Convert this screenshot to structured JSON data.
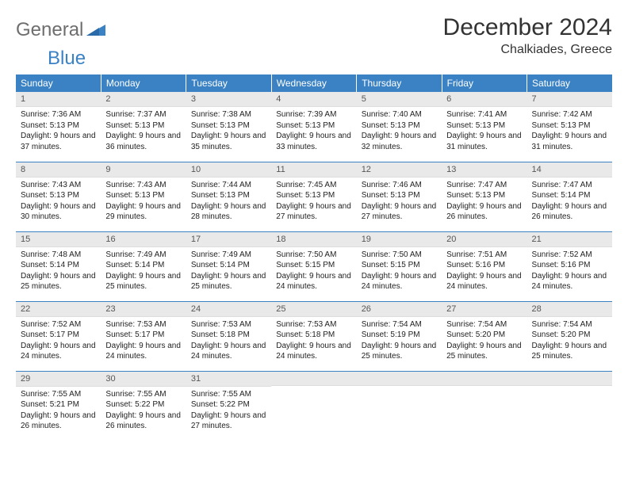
{
  "logo": {
    "part1": "General",
    "part2": "Blue"
  },
  "header": {
    "month_title": "December 2024",
    "location": "Chalkiades, Greece"
  },
  "colors": {
    "header_bg": "#3b82c4",
    "header_text": "#ffffff",
    "daynum_bg": "#e9e9e9",
    "row_divider": "#3b82c4",
    "logo_gray": "#6e6e6e",
    "logo_blue": "#3b82c4",
    "body_text": "#222222",
    "background": "#ffffff"
  },
  "typography": {
    "month_title_fontsize": 30,
    "location_fontsize": 16,
    "weekday_fontsize": 12,
    "daynum_fontsize": 11,
    "body_fontsize": 10,
    "font_family": "Arial"
  },
  "calendar": {
    "type": "table",
    "columns": [
      "Sunday",
      "Monday",
      "Tuesday",
      "Wednesday",
      "Thursday",
      "Friday",
      "Saturday"
    ],
    "weeks": [
      [
        {
          "day": "1",
          "sunrise": "Sunrise: 7:36 AM",
          "sunset": "Sunset: 5:13 PM",
          "daylight": "Daylight: 9 hours and 37 minutes."
        },
        {
          "day": "2",
          "sunrise": "Sunrise: 7:37 AM",
          "sunset": "Sunset: 5:13 PM",
          "daylight": "Daylight: 9 hours and 36 minutes."
        },
        {
          "day": "3",
          "sunrise": "Sunrise: 7:38 AM",
          "sunset": "Sunset: 5:13 PM",
          "daylight": "Daylight: 9 hours and 35 minutes."
        },
        {
          "day": "4",
          "sunrise": "Sunrise: 7:39 AM",
          "sunset": "Sunset: 5:13 PM",
          "daylight": "Daylight: 9 hours and 33 minutes."
        },
        {
          "day": "5",
          "sunrise": "Sunrise: 7:40 AM",
          "sunset": "Sunset: 5:13 PM",
          "daylight": "Daylight: 9 hours and 32 minutes."
        },
        {
          "day": "6",
          "sunrise": "Sunrise: 7:41 AM",
          "sunset": "Sunset: 5:13 PM",
          "daylight": "Daylight: 9 hours and 31 minutes."
        },
        {
          "day": "7",
          "sunrise": "Sunrise: 7:42 AM",
          "sunset": "Sunset: 5:13 PM",
          "daylight": "Daylight: 9 hours and 31 minutes."
        }
      ],
      [
        {
          "day": "8",
          "sunrise": "Sunrise: 7:43 AM",
          "sunset": "Sunset: 5:13 PM",
          "daylight": "Daylight: 9 hours and 30 minutes."
        },
        {
          "day": "9",
          "sunrise": "Sunrise: 7:43 AM",
          "sunset": "Sunset: 5:13 PM",
          "daylight": "Daylight: 9 hours and 29 minutes."
        },
        {
          "day": "10",
          "sunrise": "Sunrise: 7:44 AM",
          "sunset": "Sunset: 5:13 PM",
          "daylight": "Daylight: 9 hours and 28 minutes."
        },
        {
          "day": "11",
          "sunrise": "Sunrise: 7:45 AM",
          "sunset": "Sunset: 5:13 PM",
          "daylight": "Daylight: 9 hours and 27 minutes."
        },
        {
          "day": "12",
          "sunrise": "Sunrise: 7:46 AM",
          "sunset": "Sunset: 5:13 PM",
          "daylight": "Daylight: 9 hours and 27 minutes."
        },
        {
          "day": "13",
          "sunrise": "Sunrise: 7:47 AM",
          "sunset": "Sunset: 5:13 PM",
          "daylight": "Daylight: 9 hours and 26 minutes."
        },
        {
          "day": "14",
          "sunrise": "Sunrise: 7:47 AM",
          "sunset": "Sunset: 5:14 PM",
          "daylight": "Daylight: 9 hours and 26 minutes."
        }
      ],
      [
        {
          "day": "15",
          "sunrise": "Sunrise: 7:48 AM",
          "sunset": "Sunset: 5:14 PM",
          "daylight": "Daylight: 9 hours and 25 minutes."
        },
        {
          "day": "16",
          "sunrise": "Sunrise: 7:49 AM",
          "sunset": "Sunset: 5:14 PM",
          "daylight": "Daylight: 9 hours and 25 minutes."
        },
        {
          "day": "17",
          "sunrise": "Sunrise: 7:49 AM",
          "sunset": "Sunset: 5:14 PM",
          "daylight": "Daylight: 9 hours and 25 minutes."
        },
        {
          "day": "18",
          "sunrise": "Sunrise: 7:50 AM",
          "sunset": "Sunset: 5:15 PM",
          "daylight": "Daylight: 9 hours and 24 minutes."
        },
        {
          "day": "19",
          "sunrise": "Sunrise: 7:50 AM",
          "sunset": "Sunset: 5:15 PM",
          "daylight": "Daylight: 9 hours and 24 minutes."
        },
        {
          "day": "20",
          "sunrise": "Sunrise: 7:51 AM",
          "sunset": "Sunset: 5:16 PM",
          "daylight": "Daylight: 9 hours and 24 minutes."
        },
        {
          "day": "21",
          "sunrise": "Sunrise: 7:52 AM",
          "sunset": "Sunset: 5:16 PM",
          "daylight": "Daylight: 9 hours and 24 minutes."
        }
      ],
      [
        {
          "day": "22",
          "sunrise": "Sunrise: 7:52 AM",
          "sunset": "Sunset: 5:17 PM",
          "daylight": "Daylight: 9 hours and 24 minutes."
        },
        {
          "day": "23",
          "sunrise": "Sunrise: 7:53 AM",
          "sunset": "Sunset: 5:17 PM",
          "daylight": "Daylight: 9 hours and 24 minutes."
        },
        {
          "day": "24",
          "sunrise": "Sunrise: 7:53 AM",
          "sunset": "Sunset: 5:18 PM",
          "daylight": "Daylight: 9 hours and 24 minutes."
        },
        {
          "day": "25",
          "sunrise": "Sunrise: 7:53 AM",
          "sunset": "Sunset: 5:18 PM",
          "daylight": "Daylight: 9 hours and 24 minutes."
        },
        {
          "day": "26",
          "sunrise": "Sunrise: 7:54 AM",
          "sunset": "Sunset: 5:19 PM",
          "daylight": "Daylight: 9 hours and 25 minutes."
        },
        {
          "day": "27",
          "sunrise": "Sunrise: 7:54 AM",
          "sunset": "Sunset: 5:20 PM",
          "daylight": "Daylight: 9 hours and 25 minutes."
        },
        {
          "day": "28",
          "sunrise": "Sunrise: 7:54 AM",
          "sunset": "Sunset: 5:20 PM",
          "daylight": "Daylight: 9 hours and 25 minutes."
        }
      ],
      [
        {
          "day": "29",
          "sunrise": "Sunrise: 7:55 AM",
          "sunset": "Sunset: 5:21 PM",
          "daylight": "Daylight: 9 hours and 26 minutes."
        },
        {
          "day": "30",
          "sunrise": "Sunrise: 7:55 AM",
          "sunset": "Sunset: 5:22 PM",
          "daylight": "Daylight: 9 hours and 26 minutes."
        },
        {
          "day": "31",
          "sunrise": "Sunrise: 7:55 AM",
          "sunset": "Sunset: 5:22 PM",
          "daylight": "Daylight: 9 hours and 27 minutes."
        },
        {
          "day": "",
          "sunrise": "",
          "sunset": "",
          "daylight": ""
        },
        {
          "day": "",
          "sunrise": "",
          "sunset": "",
          "daylight": ""
        },
        {
          "day": "",
          "sunrise": "",
          "sunset": "",
          "daylight": ""
        },
        {
          "day": "",
          "sunrise": "",
          "sunset": "",
          "daylight": ""
        }
      ]
    ]
  }
}
